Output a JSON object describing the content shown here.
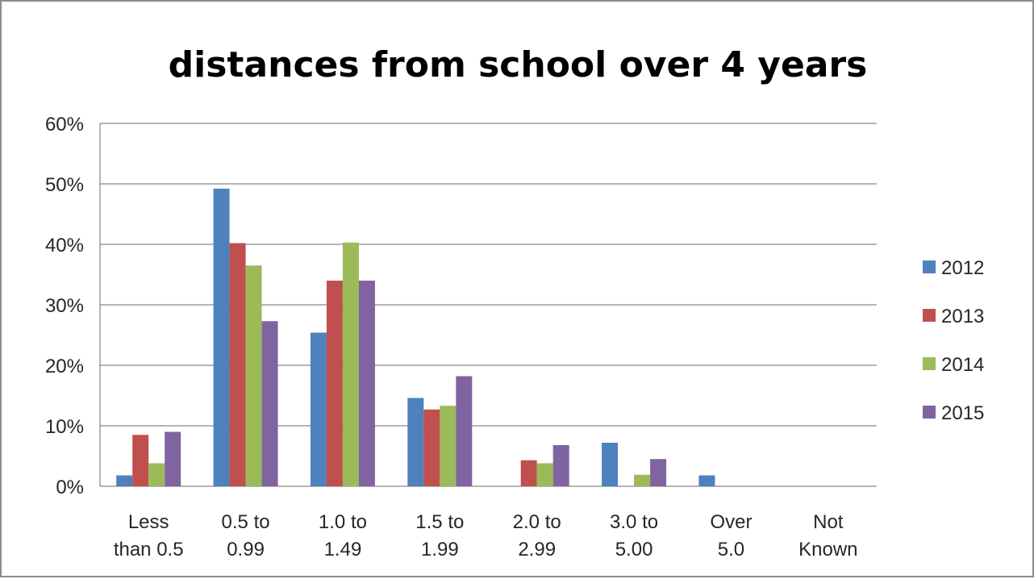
{
  "chart_data": {
    "type": "bar",
    "title": "distances from school over 4 years",
    "xlabel": "",
    "ylabel": "",
    "ylim": [
      0,
      0.6
    ],
    "yticks": [
      0,
      0.1,
      0.2,
      0.3,
      0.4,
      0.5,
      0.6
    ],
    "ytick_labels": [
      "0%",
      "10%",
      "20%",
      "30%",
      "40%",
      "50%",
      "60%"
    ],
    "grid": true,
    "legend_position": "right",
    "categories": [
      [
        "Less",
        "than 0.5"
      ],
      [
        "0.5 to",
        "0.99"
      ],
      [
        "1.0 to",
        "1.49"
      ],
      [
        "1.5 to",
        "1.99"
      ],
      [
        "2.0 to",
        "2.99"
      ],
      [
        "3.0 to",
        "5.00"
      ],
      [
        "Over",
        "5.0"
      ],
      [
        "Not",
        "Known"
      ]
    ],
    "series": [
      {
        "name": "2012",
        "color": "#4f81bd",
        "values": [
          0.018,
          0.492,
          0.254,
          0.146,
          0.0,
          0.072,
          0.018,
          0.0
        ]
      },
      {
        "name": "2013",
        "color": "#c0504d",
        "values": [
          0.085,
          0.402,
          0.34,
          0.127,
          0.043,
          0.0,
          0.0,
          0.0
        ]
      },
      {
        "name": "2014",
        "color": "#9bbb59",
        "values": [
          0.038,
          0.365,
          0.403,
          0.133,
          0.038,
          0.019,
          0.0,
          0.0
        ]
      },
      {
        "name": "2015",
        "color": "#8064a2",
        "values": [
          0.09,
          0.273,
          0.34,
          0.182,
          0.068,
          0.045,
          0.0,
          0.0
        ]
      }
    ]
  }
}
